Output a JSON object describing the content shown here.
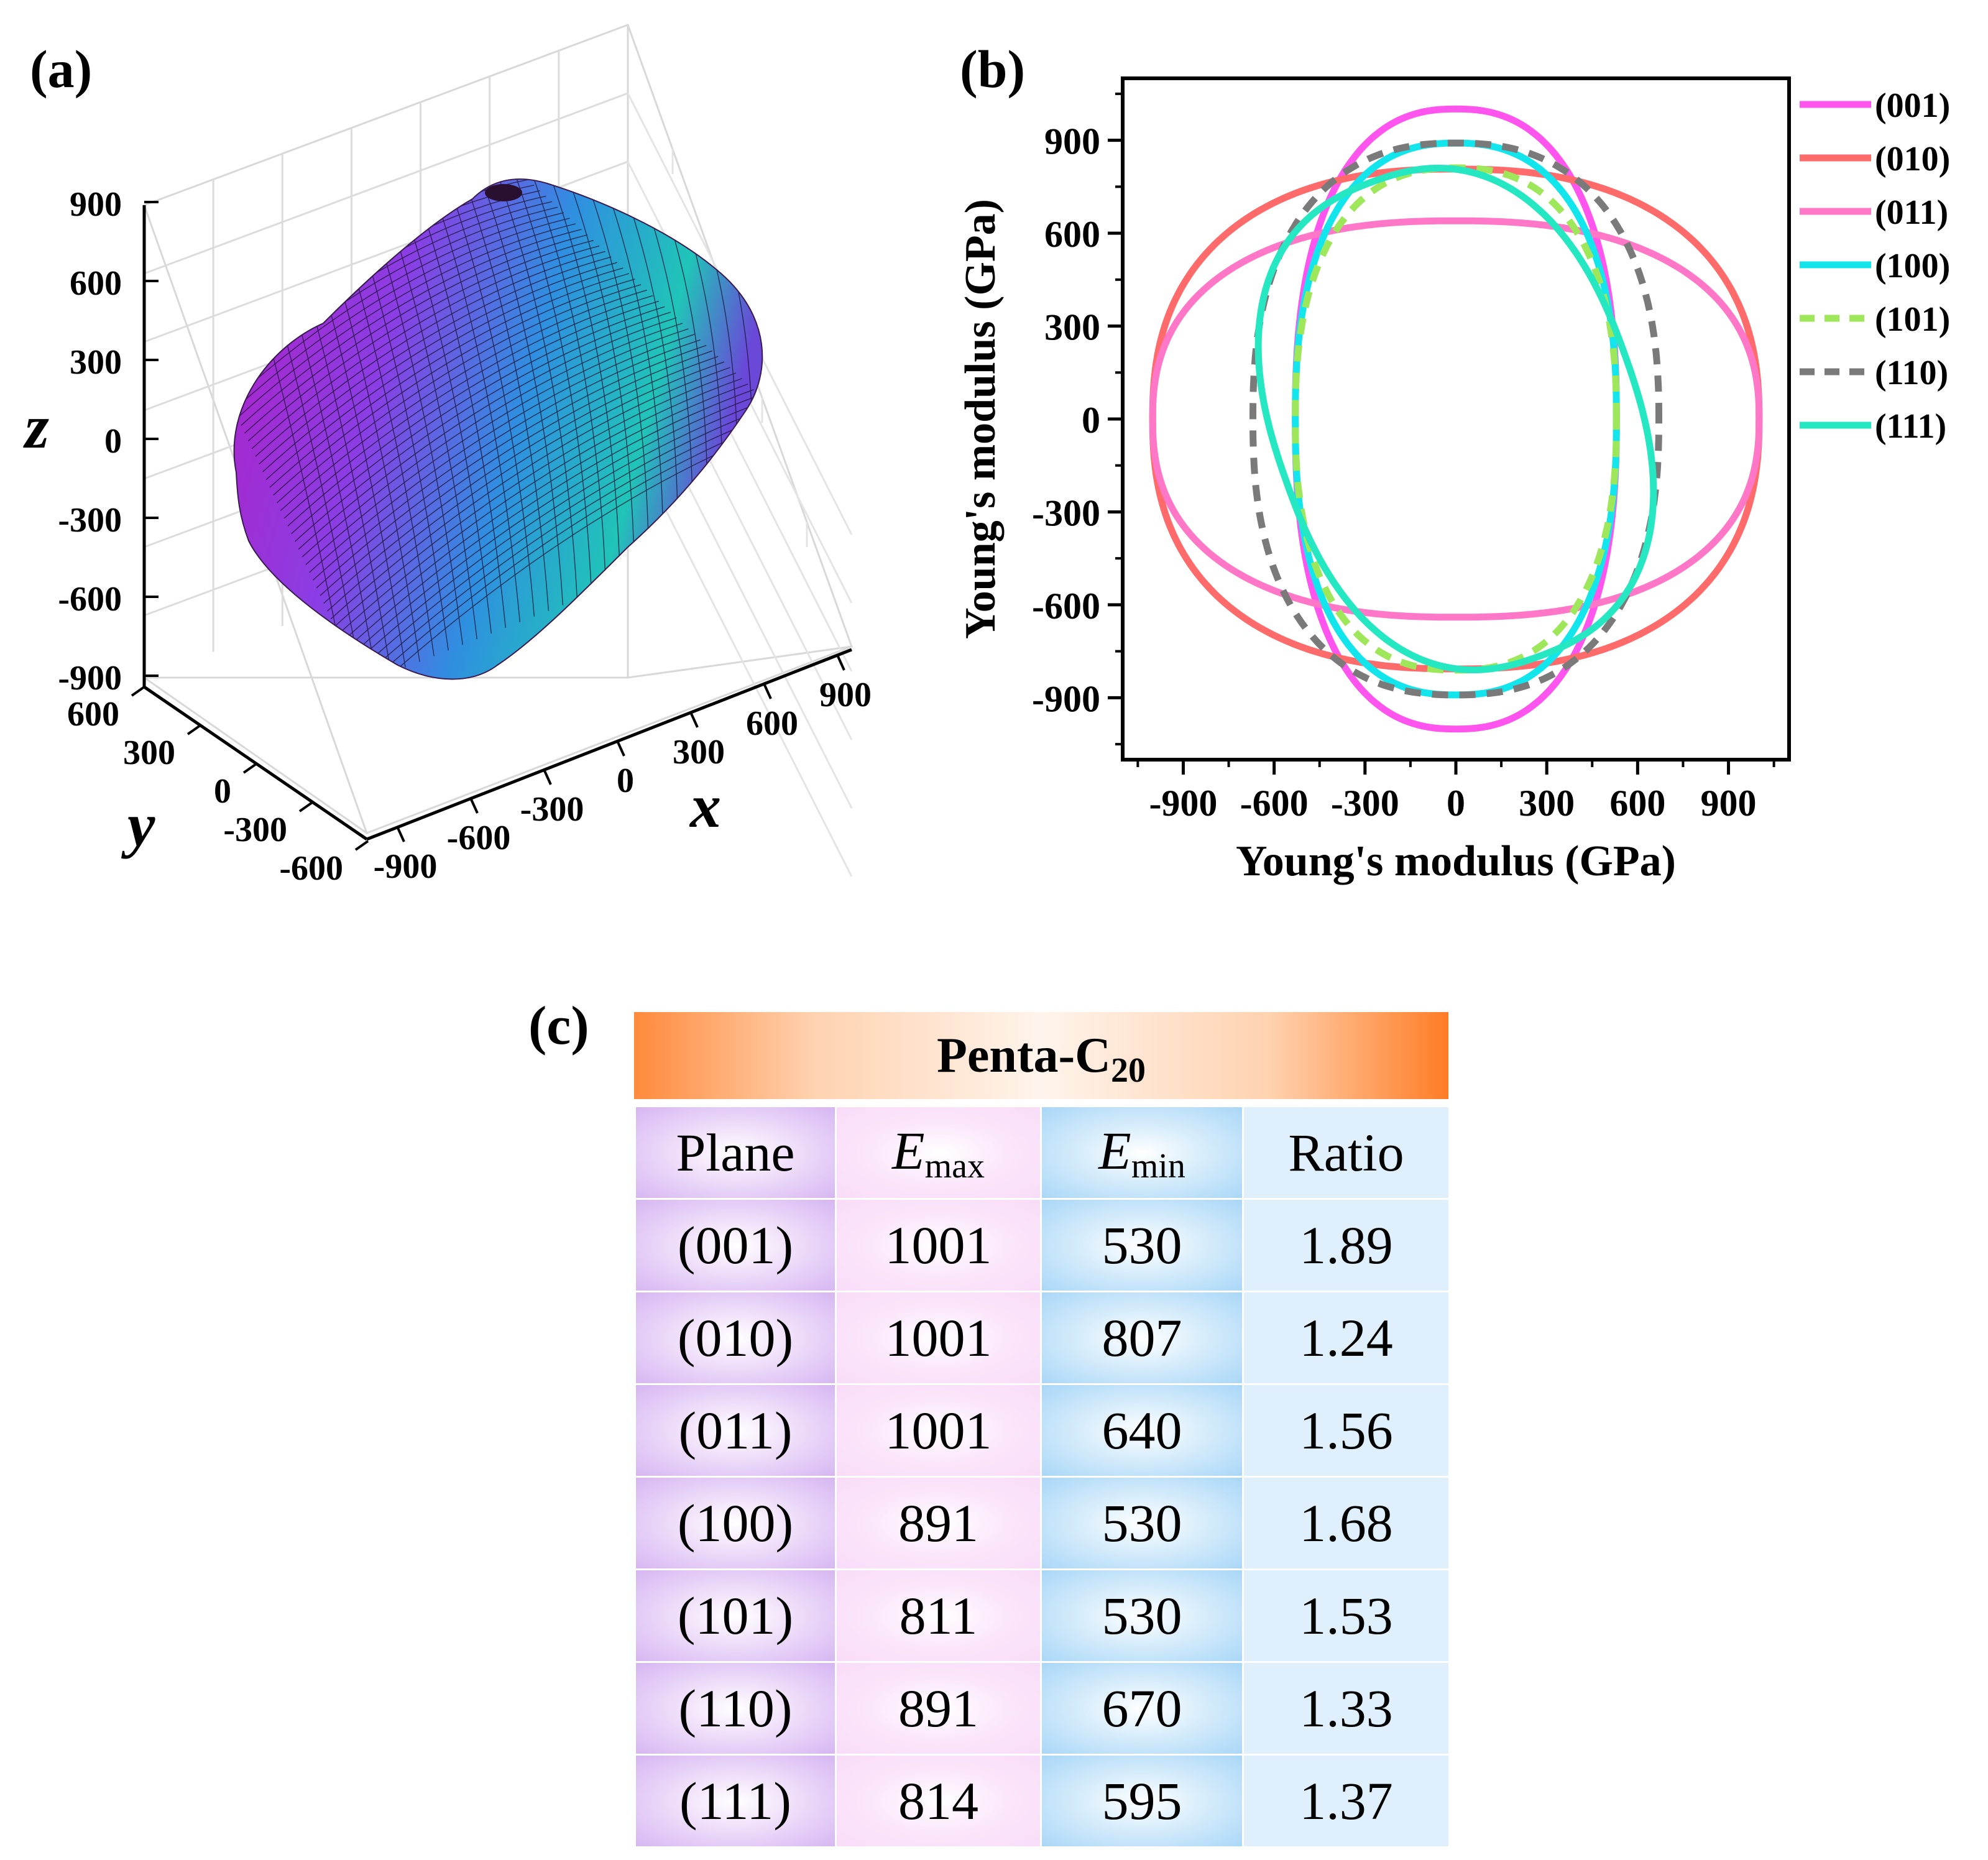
{
  "panel_labels": {
    "a": "(a)",
    "b": "(b)",
    "c": "(c)"
  },
  "chart_data": [
    {
      "id": "a",
      "type": "surface3d",
      "title": "",
      "axes": {
        "x": {
          "label": "x",
          "ticks": [
            "-900",
            "-600",
            "-300",
            "0",
            "300",
            "600",
            "900"
          ]
        },
        "y": {
          "label": "y",
          "ticks": [
            "600",
            "300",
            "0",
            "-300",
            "-600"
          ]
        },
        "z": {
          "label": "z",
          "ticks": [
            "900",
            "600",
            "300",
            "0",
            "-300",
            "-600",
            "-900"
          ]
        }
      },
      "colormap": [
        "#b424c8",
        "#7a4be6",
        "#2aa8d8",
        "#20c8b0"
      ]
    },
    {
      "id": "b",
      "type": "polar-line",
      "xlabel": "Young's modulus (GPa)",
      "ylabel": "Young's modulus (GPa)",
      "xlim": [
        -1100,
        1100
      ],
      "ylim": [
        -1100,
        1100
      ],
      "ticks": [
        -900,
        -600,
        -300,
        0,
        300,
        600,
        900
      ],
      "series": [
        {
          "name": "(001)",
          "color": "#ff55ee",
          "dash": false,
          "emax": 1001,
          "emin": 530,
          "theta_max": 90
        },
        {
          "name": "(010)",
          "color": "#ff6a6a",
          "dash": false,
          "emax": 1001,
          "emin": 807,
          "theta_max": 0
        },
        {
          "name": "(011)",
          "color": "#ff77c6",
          "dash": false,
          "emax": 1001,
          "emin": 640,
          "theta_max": 0
        },
        {
          "name": "(100)",
          "color": "#12e6ec",
          "dash": false,
          "emax": 891,
          "emin": 530,
          "theta_max": 90
        },
        {
          "name": "(101)",
          "color": "#9ee65a",
          "dash": true,
          "emax": 811,
          "emin": 530,
          "theta_max": 90
        },
        {
          "name": "(110)",
          "color": "#7a7a7a",
          "dash": true,
          "emax": 891,
          "emin": 670,
          "theta_max": 90
        },
        {
          "name": "(111)",
          "color": "#25e8c2",
          "dash": false,
          "emax": 814,
          "emin": 595,
          "theta_max": 110
        }
      ]
    },
    {
      "id": "c",
      "type": "table",
      "title_main": "Penta-C",
      "title_sub": "20",
      "headers": {
        "plane": "Plane",
        "emax_base": "E",
        "emax_sub": "max",
        "emin_base": "E",
        "emin_sub": "min",
        "ratio": "Ratio"
      },
      "rows": [
        {
          "plane": "(001)",
          "emax": "1001",
          "emin": "530",
          "ratio": "1.89"
        },
        {
          "plane": "(010)",
          "emax": "1001",
          "emin": "807",
          "ratio": "1.24"
        },
        {
          "plane": "(011)",
          "emax": "1001",
          "emin": "640",
          "ratio": "1.56"
        },
        {
          "plane": "(100)",
          "emax": "891",
          "emin": "530",
          "ratio": "1.68"
        },
        {
          "plane": "(101)",
          "emax": "811",
          "emin": "530",
          "ratio": "1.53"
        },
        {
          "plane": "(110)",
          "emax": "891",
          "emin": "670",
          "ratio": "1.33"
        },
        {
          "plane": "(111)",
          "emax": "814",
          "emin": "595",
          "ratio": "1.37"
        }
      ]
    }
  ]
}
